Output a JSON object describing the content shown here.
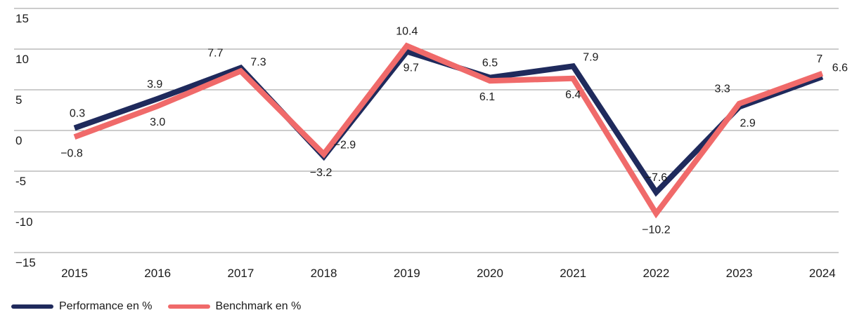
{
  "chart_data": {
    "type": "line",
    "categories": [
      "2015",
      "2016",
      "2017",
      "2018",
      "2019",
      "2020",
      "2021",
      "2022",
      "2023",
      "2024"
    ],
    "series": [
      {
        "name": "Performance en %",
        "color": "#1f2a5c",
        "values": [
          0.3,
          3.9,
          7.7,
          -3.2,
          9.7,
          6.5,
          7.9,
          -7.6,
          2.9,
          6.6
        ],
        "labels": [
          "0.3",
          "3.9",
          "7.7",
          "−3.2",
          "9.7",
          "6.5",
          "7.9",
          "−7.6",
          "2.9",
          "6.6"
        ]
      },
      {
        "name": "Benchmark en %",
        "color": "#f06a6a",
        "values": [
          -0.8,
          3.0,
          7.3,
          -2.9,
          10.4,
          6.1,
          6.4,
          -10.2,
          3.3,
          7.0
        ],
        "labels": [
          "−0.8",
          "3.0",
          "7.3",
          "−2.9",
          "10.4",
          "6.1",
          "6.4",
          "−10.2",
          "3.3",
          "7"
        ]
      }
    ],
    "y_ticks": [
      "15",
      "10",
      "5",
      "0",
      "-5",
      "-10",
      "−15"
    ],
    "ylim": [
      -15,
      15
    ],
    "grid": true,
    "legend_position": "bottom-left"
  }
}
